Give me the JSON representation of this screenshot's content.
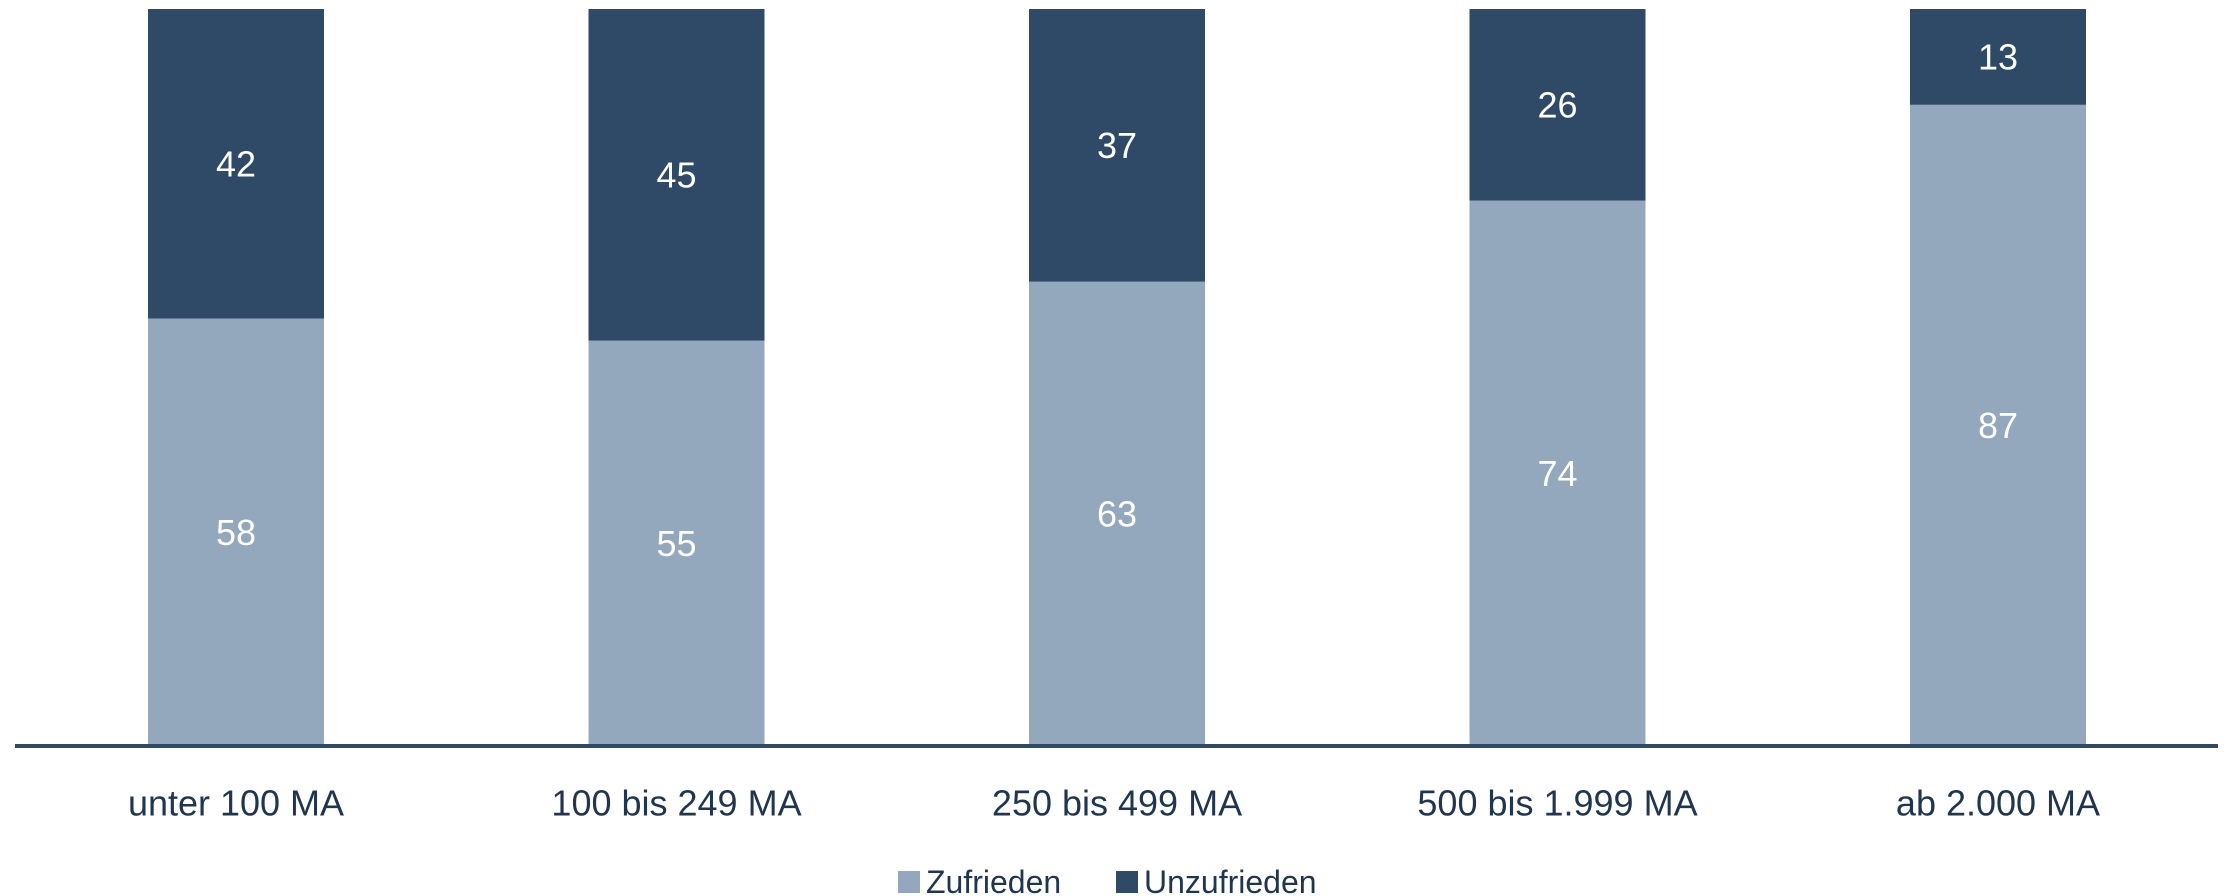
{
  "chart_data": {
    "type": "bar",
    "stacked": true,
    "categories": [
      "unter 100 MA",
      "100 bis 249 MA",
      "250 bis 499 MA",
      "500 bis 1.999 MA",
      "ab 2.000 MA"
    ],
    "series": [
      {
        "name": "Zufrieden",
        "values": [
          58,
          55,
          63,
          74,
          87
        ],
        "color": "#93a8bc"
      },
      {
        "name": "Unzufrieden",
        "values": [
          42,
          45,
          37,
          26,
          13
        ],
        "color": "#2e4a66"
      }
    ],
    "ylim": [
      0,
      100
    ],
    "grid": false,
    "legend_position": "bottom-center",
    "axis_color": "#2e4a66",
    "label_color": "#ffffff",
    "tick_color": "#1f3550"
  }
}
